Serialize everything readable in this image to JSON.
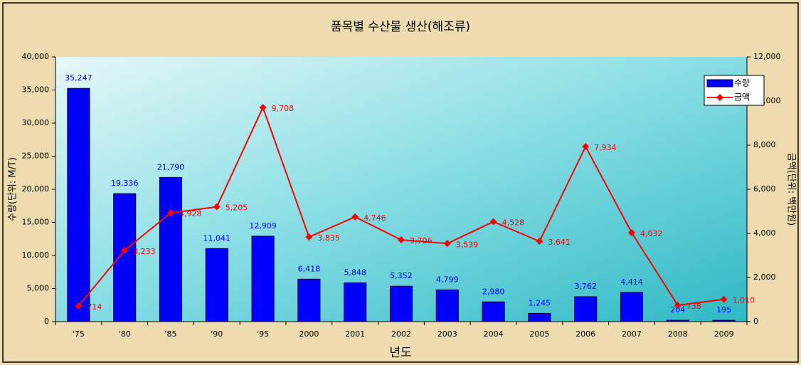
{
  "chart_data": {
    "type": "bar",
    "title": "품목별 수산물 생산(해조류)",
    "x_label": "년도",
    "y_label": "수량(단위: M/T)",
    "y2_label": "금액(단위: 백만원)",
    "categories": [
      "'75",
      "'80",
      "'85",
      "'90",
      "'95",
      "2000",
      "2001",
      "2002",
      "2003",
      "2004",
      "2005",
      "2006",
      "2007",
      "2008",
      "2009"
    ],
    "series": [
      {
        "name": "수량",
        "type": "bar",
        "color": "#0000ff",
        "values": [
          35247,
          19336,
          21790,
          11041,
          12909,
          6418,
          5848,
          5352,
          4799,
          2980,
          1245,
          3762,
          4414,
          204,
          195
        ],
        "value_labels": [
          "35,247",
          "19,336",
          "21,790",
          "11,041",
          "12,909",
          "6,418",
          "5,848",
          "5,352",
          "4,799",
          "2,980",
          "1,245",
          "3,762",
          "4,414",
          "204",
          "195"
        ]
      },
      {
        "name": "금액",
        "type": "line",
        "axis": "y2",
        "color": "#ff0000",
        "values": [
          714,
          3233,
          4928,
          5205,
          9708,
          3835,
          4746,
          3706,
          3539,
          4528,
          3641,
          7934,
          4032,
          738,
          1010
        ],
        "value_labels": [
          "714",
          "3,233",
          "4,928",
          "5,205",
          "9,708",
          "3,835",
          "4,746",
          "3,706",
          "3,539",
          "4,528",
          "3,641",
          "7,934",
          "4,032",
          "738",
          "1,010"
        ]
      }
    ],
    "ylim": [
      0,
      40000
    ],
    "yticks": [
      0,
      {
        "value": 5000,
        "label": "5,000"
      },
      {
        "value": 10000,
        "label": "10,000"
      },
      {
        "value": 15000,
        "label": "15,000"
      },
      {
        "value": 20000,
        "label": "20,000"
      },
      {
        "value": 25000,
        "label": "25,000"
      },
      {
        "value": 30000,
        "label": "30,000"
      },
      {
        "value": 35000,
        "label": "35,000"
      },
      {
        "value": 40000,
        "label": "40,000"
      }
    ],
    "y2lim": [
      0,
      12000
    ],
    "y2ticks": [
      0,
      {
        "value": 2000,
        "label": "2,000"
      },
      {
        "value": 4000,
        "label": "4,000"
      },
      {
        "value": 6000,
        "label": "6,000"
      },
      {
        "value": 8000,
        "label": "8,000"
      },
      {
        "value": 10000,
        "label": "10,000"
      },
      {
        "value": 12000,
        "label": "12,000"
      }
    ],
    "legend": "upper right"
  }
}
